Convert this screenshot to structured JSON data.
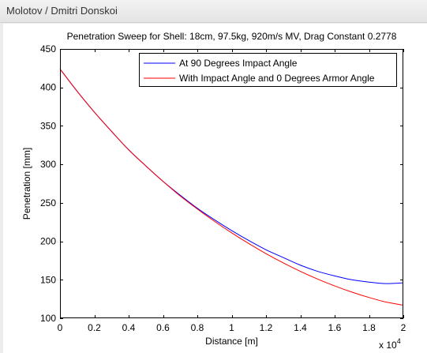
{
  "window": {
    "title": "Molotov / Dmitri Donskoi"
  },
  "chart_data": {
    "type": "line",
    "title": "Penetration Sweep for Shell: 18cm, 97.5kg, 920m/s MV, Drag Constant 0.2778",
    "xlabel": "Distance [m]",
    "ylabel": "Penetration [mm]",
    "xlim": [
      0,
      20000
    ],
    "ylim": [
      100,
      450
    ],
    "x_tick_values": [
      0,
      2000,
      4000,
      6000,
      8000,
      10000,
      12000,
      14000,
      16000,
      18000,
      20000
    ],
    "x_tick_labels": [
      "0",
      "0.2",
      "0.4",
      "0.6",
      "0.8",
      "1",
      "1.2",
      "1.4",
      "1.6",
      "1.8",
      "2"
    ],
    "x_multiplier": "x 10",
    "x_multiplier_exponent": "4",
    "y_ticks": [
      100,
      150,
      200,
      250,
      300,
      350,
      400,
      450
    ],
    "grid": false,
    "legend_position": "top-right",
    "series": [
      {
        "name": "At 90 Degrees Impact Angle",
        "color": "#0000ff",
        "x": [
          0,
          1000,
          2000,
          3000,
          4000,
          5000,
          6000,
          7000,
          8000,
          9000,
          10000,
          11000,
          12000,
          13000,
          14000,
          15000,
          16000,
          17000,
          18000,
          19000,
          20000
        ],
        "y": [
          424,
          395,
          368,
          343,
          319,
          298,
          278,
          260,
          243,
          228,
          214,
          201,
          189,
          179,
          169,
          161,
          155,
          150,
          147,
          145,
          146
        ]
      },
      {
        "name": "With Impact Angle and 0 Degrees Armor Angle",
        "color": "#ff0000",
        "x": [
          0,
          1000,
          2000,
          3000,
          4000,
          5000,
          6000,
          7000,
          8000,
          9000,
          10000,
          11000,
          12000,
          13000,
          14000,
          15000,
          16000,
          17000,
          18000,
          19000,
          20000
        ],
        "y": [
          424,
          395,
          368,
          343,
          319,
          298,
          278,
          259,
          242,
          226,
          211,
          197,
          184,
          172,
          161,
          151,
          142,
          134,
          127,
          121,
          117
        ]
      }
    ]
  }
}
